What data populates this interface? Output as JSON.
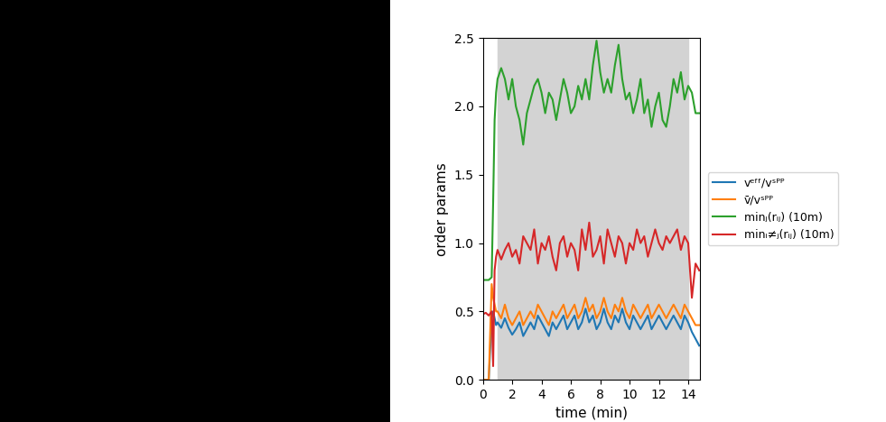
{
  "chart_data": {
    "type": "line",
    "x_label": "time (min)",
    "y_label": "order params",
    "x": [
      0,
      0.2,
      0.4,
      0.6,
      0.7,
      0.8,
      0.9,
      1.0,
      1.25,
      1.5,
      1.75,
      2.0,
      2.25,
      2.5,
      2.75,
      3.0,
      3.25,
      3.5,
      3.75,
      4.0,
      4.25,
      4.5,
      4.75,
      5.0,
      5.25,
      5.5,
      5.75,
      6.0,
      6.25,
      6.5,
      6.75,
      7.0,
      7.25,
      7.5,
      7.75,
      8.0,
      8.25,
      8.5,
      8.75,
      9.0,
      9.25,
      9.5,
      9.75,
      10.0,
      10.25,
      10.5,
      10.75,
      11.0,
      11.25,
      11.5,
      11.75,
      12.0,
      12.25,
      12.5,
      12.75,
      13.0,
      13.25,
      13.5,
      13.75,
      14.0,
      14.25,
      14.5,
      14.75
    ],
    "xlim": [
      0,
      14.8
    ],
    "xticks": [
      0,
      2,
      4,
      6,
      8,
      10,
      12,
      14
    ],
    "ylim": [
      0,
      2.5
    ],
    "yticks": [
      {
        "value": 0,
        "label": "0.0"
      },
      {
        "value": 0.5,
        "label": "0.5"
      },
      {
        "value": 1.0,
        "label": "1.0"
      },
      {
        "value": 1.5,
        "label": "1.5"
      },
      {
        "value": 2.0,
        "label": "2.0"
      },
      {
        "value": 2.5,
        "label": "2.5"
      }
    ],
    "shaded": [
      [
        1,
        14
      ]
    ],
    "legend": "right",
    "series": [
      {
        "name": "vᵉᶠᶠ/vˢᴾᴾ",
        "color": "#1f77b4",
        "values": [
          0.0,
          0.0,
          0.0,
          0.45,
          0.5,
          0.45,
          0.4,
          0.42,
          0.38,
          0.45,
          0.38,
          0.33,
          0.37,
          0.42,
          0.32,
          0.37,
          0.42,
          0.37,
          0.47,
          0.42,
          0.37,
          0.32,
          0.42,
          0.37,
          0.42,
          0.47,
          0.37,
          0.42,
          0.47,
          0.37,
          0.42,
          0.52,
          0.42,
          0.47,
          0.37,
          0.42,
          0.52,
          0.42,
          0.37,
          0.47,
          0.42,
          0.52,
          0.42,
          0.37,
          0.47,
          0.42,
          0.37,
          0.42,
          0.47,
          0.37,
          0.42,
          0.47,
          0.42,
          0.37,
          0.42,
          0.47,
          0.42,
          0.37,
          0.47,
          0.42,
          0.35,
          0.3,
          0.25
        ]
      },
      {
        "name": "v̄/vˢᴾᴾ",
        "color": "#ff7f0e",
        "values": [
          0.0,
          0.0,
          0.0,
          0.7,
          0.6,
          0.55,
          0.5,
          0.5,
          0.45,
          0.55,
          0.45,
          0.4,
          0.45,
          0.5,
          0.4,
          0.45,
          0.5,
          0.45,
          0.55,
          0.5,
          0.45,
          0.4,
          0.5,
          0.45,
          0.5,
          0.55,
          0.45,
          0.5,
          0.55,
          0.45,
          0.5,
          0.6,
          0.5,
          0.55,
          0.45,
          0.5,
          0.6,
          0.5,
          0.45,
          0.55,
          0.5,
          0.6,
          0.5,
          0.45,
          0.55,
          0.5,
          0.45,
          0.5,
          0.55,
          0.45,
          0.5,
          0.55,
          0.5,
          0.45,
          0.5,
          0.55,
          0.5,
          0.45,
          0.55,
          0.5,
          0.45,
          0.4,
          0.4
        ]
      },
      {
        "name": "minⱼ(rᵢⱼ) (10m)",
        "color": "#2ca02c",
        "values": [
          0.73,
          0.73,
          0.73,
          0.75,
          1.3,
          1.9,
          2.1,
          2.2,
          2.28,
          2.2,
          2.05,
          2.2,
          2.0,
          1.9,
          1.72,
          1.95,
          2.05,
          2.15,
          2.2,
          2.1,
          1.95,
          2.1,
          2.05,
          1.9,
          2.05,
          2.2,
          2.1,
          1.95,
          2.0,
          2.15,
          2.05,
          2.2,
          2.05,
          2.3,
          2.48,
          2.25,
          2.1,
          2.2,
          2.1,
          2.3,
          2.45,
          2.2,
          2.05,
          2.1,
          1.95,
          2.05,
          2.2,
          1.95,
          2.05,
          1.85,
          2.0,
          2.1,
          1.9,
          1.85,
          2.0,
          2.2,
          2.1,
          2.25,
          2.05,
          2.15,
          2.1,
          1.95,
          1.95
        ]
      },
      {
        "name": "minᵢ≠ⱼ(rᵢⱼ) (10m)",
        "color": "#d62728",
        "values": [
          0.48,
          0.49,
          0.47,
          0.5,
          0.1,
          0.8,
          0.9,
          0.95,
          0.88,
          0.95,
          1.0,
          0.9,
          0.95,
          0.85,
          1.05,
          1.0,
          0.95,
          1.1,
          0.85,
          1.0,
          0.95,
          1.05,
          0.9,
          0.8,
          1.0,
          1.05,
          0.9,
          1.0,
          0.95,
          0.8,
          1.1,
          0.95,
          1.15,
          0.9,
          0.95,
          1.05,
          0.85,
          1.1,
          1.0,
          0.9,
          1.05,
          1.0,
          0.85,
          1.0,
          0.95,
          1.1,
          1.0,
          1.05,
          0.9,
          1.0,
          1.1,
          1.0,
          0.95,
          1.05,
          1.0,
          1.05,
          1.1,
          0.95,
          1.05,
          1.0,
          0.6,
          0.85,
          0.8
        ]
      }
    ]
  }
}
